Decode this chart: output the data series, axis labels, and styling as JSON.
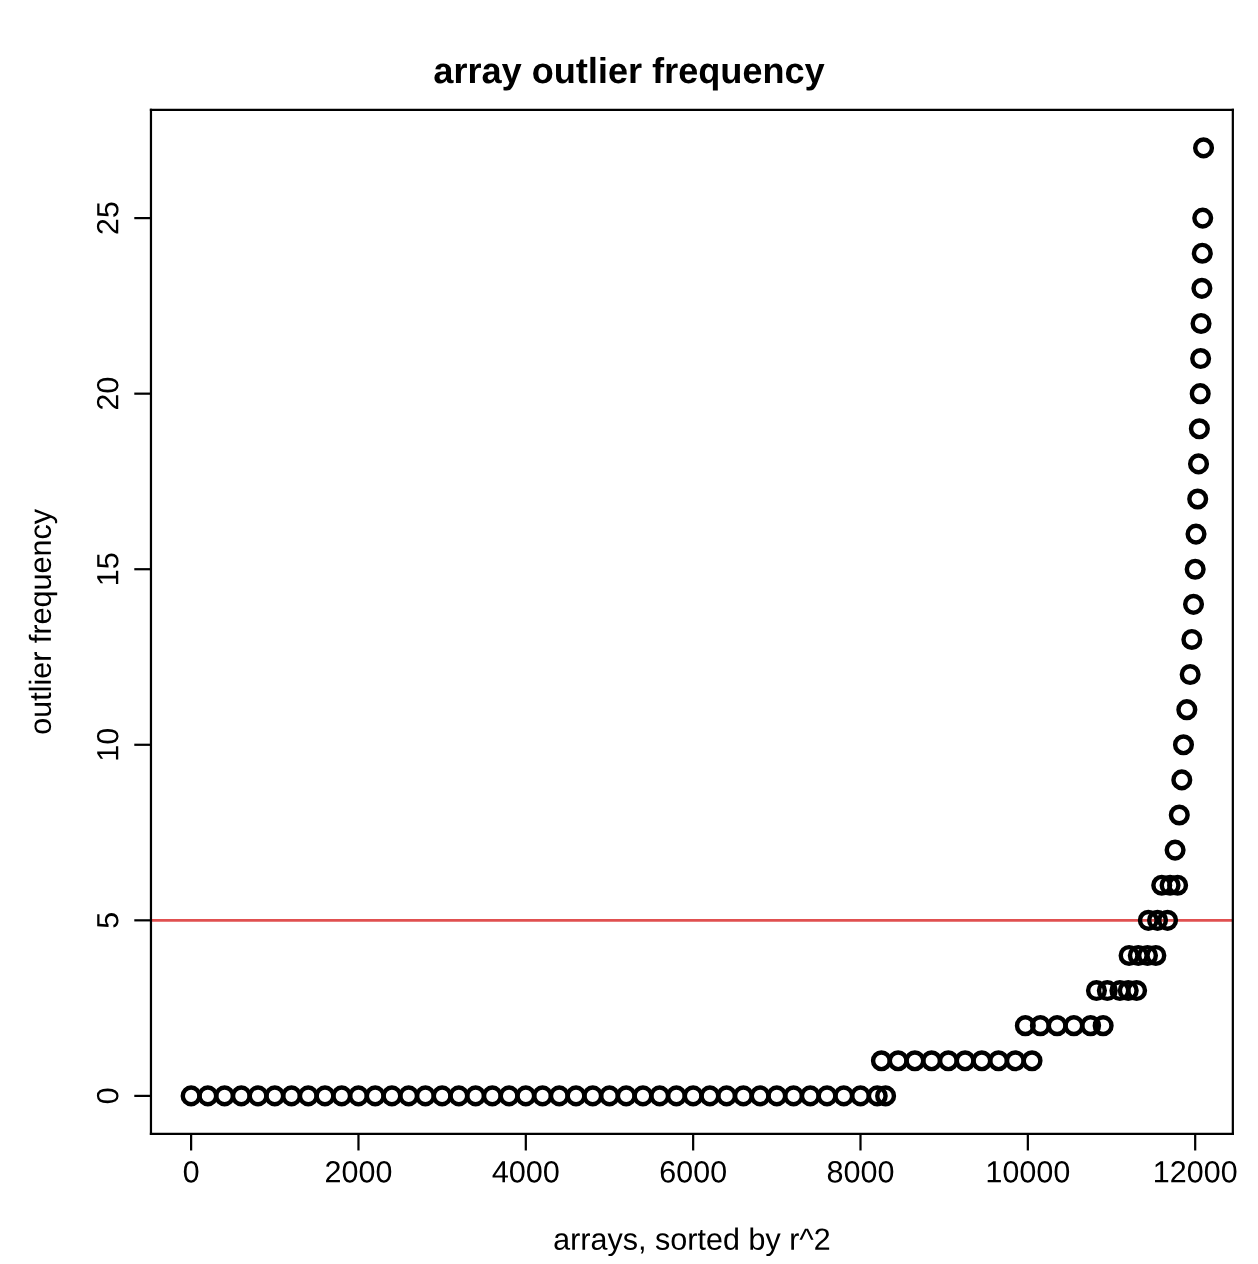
{
  "chart_data": {
    "type": "scatter",
    "title": "array outlier frequency",
    "xlabel": "arrays, sorted by r^2",
    "ylabel": "outlier frequency",
    "xlim": [
      -480,
      12450
    ],
    "ylim": [
      -1.08,
      28.08
    ],
    "xticks": [
      0,
      2000,
      4000,
      6000,
      8000,
      10000,
      12000
    ],
    "yticks": [
      0,
      5,
      10,
      15,
      20,
      25
    ],
    "grid": false,
    "legend": false,
    "marker": "circle",
    "ref_lines": [
      {
        "axis": "y",
        "value": 5,
        "color": "#e05050"
      }
    ],
    "series": [
      {
        "color": "#000000",
        "x": [
          0,
          200,
          400,
          600,
          800,
          1000,
          1200,
          1400,
          1600,
          1800,
          2000,
          2200,
          2400,
          2600,
          2800,
          3000,
          3200,
          3400,
          3600,
          3800,
          4000,
          4200,
          4400,
          4600,
          4800,
          5000,
          5200,
          5400,
          5600,
          5800,
          6000,
          6200,
          6400,
          6600,
          6800,
          7000,
          7200,
          7400,
          7600,
          7800,
          8000,
          8200,
          8300,
          8250,
          8450,
          8650,
          8850,
          9050,
          9250,
          9450,
          9650,
          9850,
          10050,
          9970,
          10150,
          10350,
          10550,
          10750,
          10900,
          10820,
          10950,
          11100,
          11200,
          11300,
          11210,
          11320,
          11430,
          11530,
          11440,
          11550,
          11670,
          11600,
          11700,
          11790,
          11760,
          11810,
          11840,
          11860,
          11900,
          11940,
          11960,
          11980,
          12000,
          12010,
          12030,
          12040,
          12050,
          12060,
          12065,
          12070,
          12080,
          12085,
          12090,
          12100
        ],
        "values": [
          0,
          0,
          0,
          0,
          0,
          0,
          0,
          0,
          0,
          0,
          0,
          0,
          0,
          0,
          0,
          0,
          0,
          0,
          0,
          0,
          0,
          0,
          0,
          0,
          0,
          0,
          0,
          0,
          0,
          0,
          0,
          0,
          0,
          0,
          0,
          0,
          0,
          0,
          0,
          0,
          0,
          0,
          0,
          1,
          1,
          1,
          1,
          1,
          1,
          1,
          1,
          1,
          1,
          2,
          2,
          2,
          2,
          2,
          2,
          3,
          3,
          3,
          3,
          3,
          4,
          4,
          4,
          4,
          5,
          5,
          5,
          6,
          6,
          6,
          7,
          8,
          9,
          10,
          11,
          12,
          13,
          14,
          15,
          16,
          17,
          18,
          19,
          20,
          21,
          22,
          23,
          24,
          25,
          27
        ]
      }
    ]
  }
}
